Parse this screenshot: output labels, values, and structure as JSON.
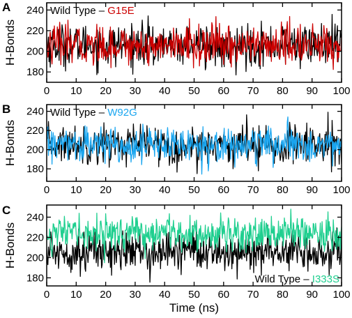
{
  "chart_data": [
    {
      "type": "line",
      "panel_label": "A",
      "xlabel": "",
      "ylabel": "H-Bonds",
      "xlim": [
        0,
        100
      ],
      "ylim": [
        170,
        247
      ],
      "xticks": [
        0,
        10,
        20,
        30,
        40,
        50,
        60,
        70,
        80,
        90,
        100
      ],
      "yticks": [
        180,
        200,
        220,
        240
      ],
      "legend": {
        "placement": "top-left",
        "prefix": "Wild Type",
        "separator": " – ",
        "suffix": "G15E"
      },
      "series": [
        {
          "name": "Wild Type",
          "color": "#000000",
          "mean": 206,
          "sd": 10,
          "min": 175,
          "max": 240
        },
        {
          "name": "G15E",
          "color": "#cc0000",
          "mean": 206,
          "sd": 9.5,
          "min": 172,
          "max": 240
        }
      ]
    },
    {
      "type": "line",
      "panel_label": "B",
      "xlabel": "",
      "ylabel": "H-Bonds",
      "xlim": [
        0,
        100
      ],
      "ylim": [
        167,
        247
      ],
      "xticks": [
        0,
        10,
        20,
        30,
        40,
        50,
        60,
        70,
        80,
        90,
        100
      ],
      "yticks": [
        180,
        200,
        220,
        240
      ],
      "legend": {
        "placement": "top-left",
        "prefix": "Wild Type",
        "separator": " – ",
        "suffix": "W92G"
      },
      "series": [
        {
          "name": "Wild Type",
          "color": "#000000",
          "mean": 206,
          "sd": 10,
          "min": 175,
          "max": 240
        },
        {
          "name": "W92G",
          "color": "#1aa6f0",
          "mean": 205,
          "sd": 9,
          "min": 168,
          "max": 235
        }
      ]
    },
    {
      "type": "line",
      "panel_label": "C",
      "xlabel": "Time (ns)",
      "ylabel": "H-Bonds",
      "xlim": [
        0,
        100
      ],
      "ylim": [
        172,
        252
      ],
      "xticks": [
        0,
        10,
        20,
        30,
        40,
        50,
        60,
        70,
        80,
        90,
        100
      ],
      "yticks": [
        180,
        200,
        220,
        240
      ],
      "legend": {
        "placement": "bottom-right",
        "prefix": "Wild Type",
        "separator": " – ",
        "suffix": "I333S"
      },
      "series": [
        {
          "name": "Wild Type",
          "color": "#000000",
          "mean": 206,
          "sd": 10,
          "min": 175,
          "max": 240
        },
        {
          "name": "I333S",
          "color": "#1fcf8f",
          "mean": 224,
          "sd": 8.5,
          "min": 190,
          "max": 250
        }
      ]
    }
  ]
}
